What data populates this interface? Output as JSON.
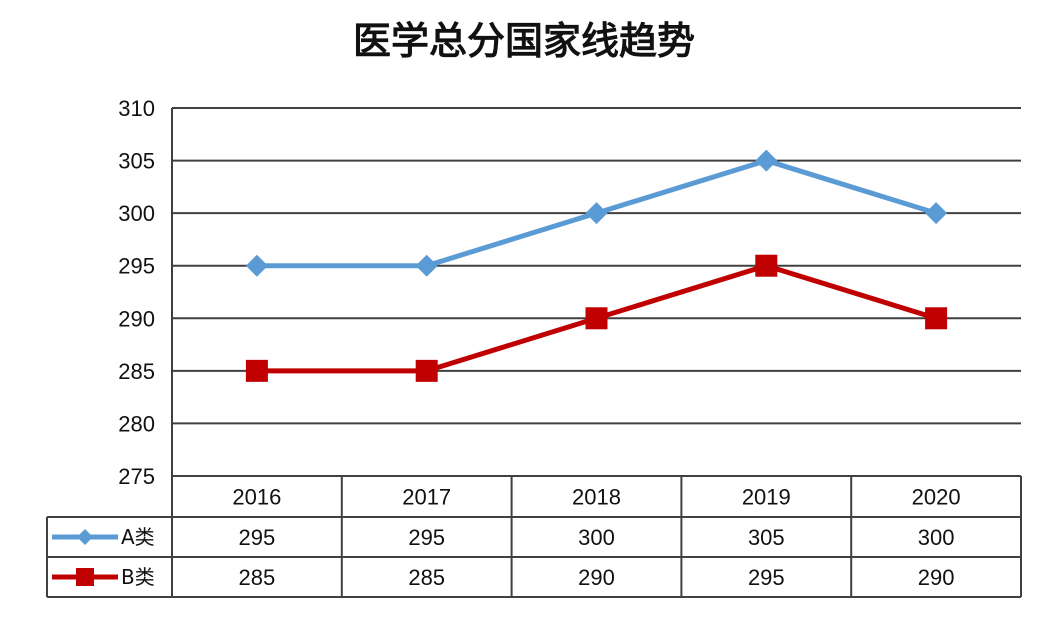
{
  "chart_data": {
    "type": "line",
    "title": "医学总分国家线趋势",
    "xlabel": "",
    "ylabel": "",
    "categories": [
      "2016",
      "2017",
      "2018",
      "2019",
      "2020"
    ],
    "ylim": [
      275,
      310
    ],
    "yticks": [
      "275",
      "280",
      "285",
      "290",
      "295",
      "300",
      "305",
      "310"
    ],
    "grid": true,
    "legend_placement": "data-table-left",
    "series": [
      {
        "name": "A类",
        "values": [
          295,
          295,
          300,
          305,
          300
        ],
        "labels": [
          "295",
          "295",
          "300",
          "305",
          "300"
        ],
        "color": "#5b9bd5",
        "marker": "diamond"
      },
      {
        "name": "B类",
        "values": [
          285,
          285,
          290,
          295,
          290
        ],
        "labels": [
          "285",
          "285",
          "290",
          "295",
          "290"
        ],
        "color": "#c00000",
        "marker": "square"
      }
    ]
  }
}
